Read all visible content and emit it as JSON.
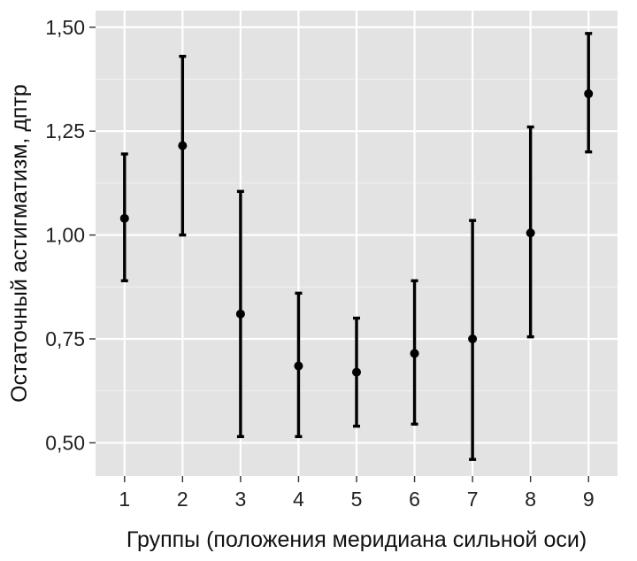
{
  "chart_data": {
    "type": "scatter",
    "subtype": "point-with-error-bars",
    "xlabel": "Группы (положения меридиана сильной оси)",
    "ylabel": "Остаточный астигматизм, дптр",
    "categories": [
      "1",
      "2",
      "3",
      "4",
      "5",
      "6",
      "7",
      "8",
      "9"
    ],
    "y_ticks": [
      0.5,
      0.75,
      1.0,
      1.25,
      1.5
    ],
    "y_tick_labels": [
      "0,50",
      "0,75",
      "1,00",
      "1,25",
      "1,50"
    ],
    "ylim": [
      0.42,
      1.54
    ],
    "grid": true,
    "points": [
      {
        "x": "1",
        "y": 1.04,
        "lower": 0.89,
        "upper": 1.195
      },
      {
        "x": "2",
        "y": 1.215,
        "lower": 1.0,
        "upper": 1.43
      },
      {
        "x": "3",
        "y": 0.81,
        "lower": 0.515,
        "upper": 1.105
      },
      {
        "x": "4",
        "y": 0.685,
        "lower": 0.515,
        "upper": 0.86
      },
      {
        "x": "5",
        "y": 0.67,
        "lower": 0.54,
        "upper": 0.8
      },
      {
        "x": "6",
        "y": 0.715,
        "lower": 0.545,
        "upper": 0.89
      },
      {
        "x": "7",
        "y": 0.75,
        "lower": 0.46,
        "upper": 1.035
      },
      {
        "x": "8",
        "y": 1.005,
        "lower": 0.755,
        "upper": 1.26
      },
      {
        "x": "9",
        "y": 1.34,
        "lower": 1.2,
        "upper": 1.485
      }
    ],
    "colors": {
      "panel": "#e3e3e3",
      "grid": "#ffffff",
      "marks": "#000000"
    }
  }
}
